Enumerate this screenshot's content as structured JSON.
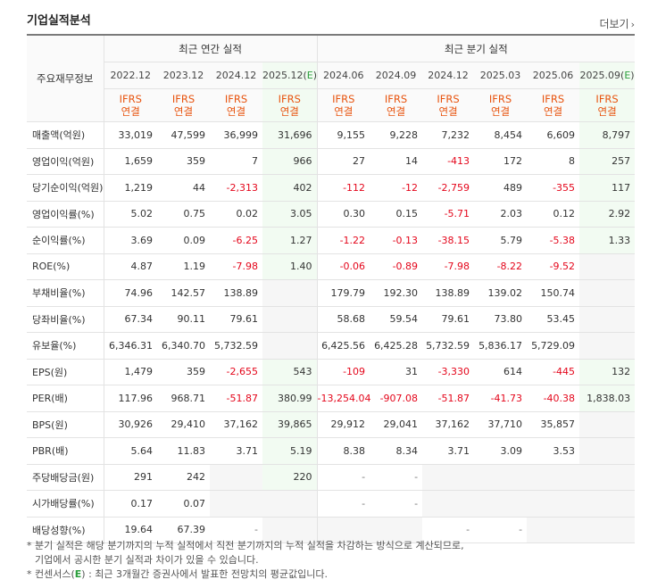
{
  "title": "기업실적분석",
  "more_label": "더보기",
  "header": {
    "row_label": "주요재무정보",
    "annual_group": "최근 연간 실적",
    "quarter_group": "최근 분기 실적",
    "annual_periods": [
      "2022.12",
      "2023.12",
      "2024.12",
      "2025.12(E)"
    ],
    "quarter_periods": [
      "2024.06",
      "2024.09",
      "2024.12",
      "2025.03",
      "2025.06",
      "2025.09(E)"
    ],
    "ifrs": "IFRS",
    "consolidated": "연결"
  },
  "rows": [
    {
      "label": "매출액(억원)",
      "values": [
        "33,019",
        "47,599",
        "36,999",
        "31,696",
        "9,155",
        "9,228",
        "7,232",
        "8,454",
        "6,609",
        "8,797"
      ]
    },
    {
      "label": "영업이익(억원)",
      "values": [
        "1,659",
        "359",
        "7",
        "966",
        "27",
        "14",
        "-413",
        "172",
        "8",
        "257"
      ]
    },
    {
      "label": "당기순이익(억원)",
      "values": [
        "1,219",
        "44",
        "-2,313",
        "402",
        "-112",
        "-12",
        "-2,759",
        "489",
        "-355",
        "117"
      ]
    },
    {
      "label": "영업이익률(%)",
      "values": [
        "5.02",
        "0.75",
        "0.02",
        "3.05",
        "0.30",
        "0.15",
        "-5.71",
        "2.03",
        "0.12",
        "2.92"
      ]
    },
    {
      "label": "순이익률(%)",
      "values": [
        "3.69",
        "0.09",
        "-6.25",
        "1.27",
        "-1.22",
        "-0.13",
        "-38.15",
        "5.79",
        "-5.38",
        "1.33"
      ]
    },
    {
      "label": "ROE(%)",
      "values": [
        "4.87",
        "1.19",
        "-7.98",
        "1.40",
        "-0.06",
        "-0.89",
        "-7.98",
        "-8.22",
        "-9.52",
        ""
      ]
    },
    {
      "label": "부채비율(%)",
      "values": [
        "74.96",
        "142.57",
        "138.89",
        "",
        "179.79",
        "192.30",
        "138.89",
        "139.02",
        "150.74",
        ""
      ]
    },
    {
      "label": "당좌비율(%)",
      "values": [
        "67.34",
        "90.11",
        "79.61",
        "",
        "58.68",
        "59.54",
        "79.61",
        "73.80",
        "53.45",
        ""
      ]
    },
    {
      "label": "유보율(%)",
      "values": [
        "6,346.31",
        "6,340.70",
        "5,732.59",
        "",
        "6,425.56",
        "6,425.28",
        "5,732.59",
        "5,836.17",
        "5,729.09",
        ""
      ]
    },
    {
      "label": "EPS(원)",
      "values": [
        "1,479",
        "359",
        "-2,655",
        "543",
        "-109",
        "31",
        "-3,330",
        "614",
        "-445",
        "132"
      ]
    },
    {
      "label": "PER(배)",
      "values": [
        "117.96",
        "968.71",
        "-51.87",
        "380.99",
        "-13,254.04",
        "-907.08",
        "-51.87",
        "-41.73",
        "-40.38",
        "1,838.03"
      ]
    },
    {
      "label": "BPS(원)",
      "values": [
        "30,926",
        "29,410",
        "37,162",
        "39,865",
        "29,912",
        "29,041",
        "37,162",
        "37,710",
        "35,857",
        ""
      ]
    },
    {
      "label": "PBR(배)",
      "values": [
        "5.64",
        "11.83",
        "3.71",
        "5.19",
        "8.38",
        "8.34",
        "3.71",
        "3.09",
        "3.53",
        ""
      ]
    },
    {
      "label": "주당배당금(원)",
      "values": [
        "291",
        "242",
        "",
        "220",
        "-",
        "-",
        "",
        "",
        "",
        ""
      ]
    },
    {
      "label": "시가배당률(%)",
      "values": [
        "0.17",
        "0.07",
        "",
        "",
        "-",
        "-",
        "",
        "",
        "",
        ""
      ]
    },
    {
      "label": "배당성향(%)",
      "values": [
        "19.64",
        "67.39",
        "-",
        "",
        "",
        "",
        "-",
        "-",
        "",
        ""
      ]
    }
  ],
  "notes": {
    "line1": "* 분기 실적은 해당 분기까지의 누적 실적에서 직전 분기까지의 누적 실적을 차감하는 방식으로 계산되므로,",
    "line2": "기업에서 공시한 분기 실적과 차이가 있을 수 있습니다.",
    "line3_prefix": "* 컨센서스(",
    "line3_mark": "E",
    "line3_suffix": ") : 최근 3개월간 증권사에서 발표한 전망치의 평균값입니다."
  },
  "colors": {
    "negative": "#e4061b",
    "ifrs": "#e8540f",
    "estimate_bg": "#f2fbf2",
    "estimate_mark": "#2a9e3b"
  }
}
